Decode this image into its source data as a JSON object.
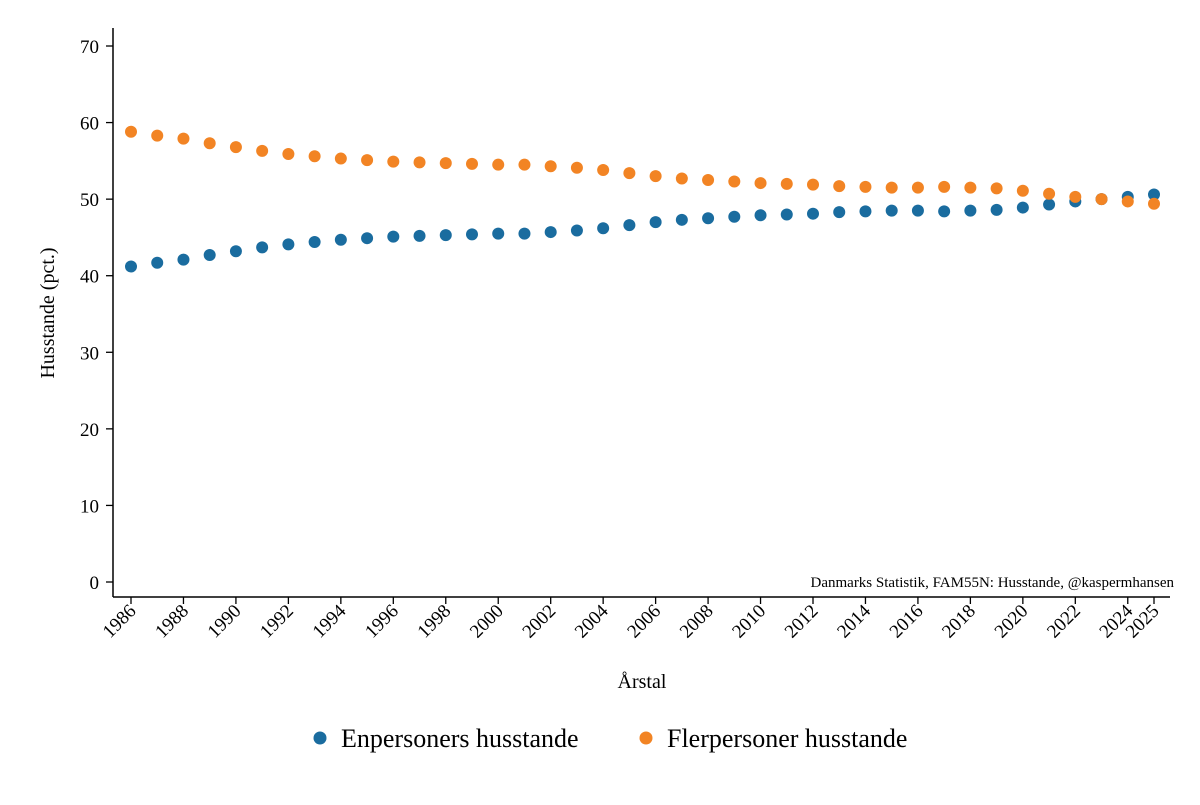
{
  "chart_data": {
    "type": "scatter",
    "title": "",
    "xlabel": "Årstal",
    "ylabel": "Husstande (pct.)",
    "xlim": [
      1986,
      2025
    ],
    "ylim": [
      0,
      70
    ],
    "y_ticks": [
      0,
      10,
      20,
      30,
      40,
      50,
      60,
      70
    ],
    "x_ticks": [
      1986,
      1988,
      1990,
      1992,
      1994,
      1996,
      1998,
      2000,
      2002,
      2004,
      2006,
      2008,
      2010,
      2012,
      2014,
      2016,
      2018,
      2020,
      2022,
      2024,
      2025
    ],
    "grid": false,
    "legend_position": "bottom",
    "source_note": "Danmarks Statistik, FAM55N: Husstande, @kaspermhansen",
    "x": [
      1986,
      1987,
      1988,
      1989,
      1990,
      1991,
      1992,
      1993,
      1994,
      1995,
      1996,
      1997,
      1998,
      1999,
      2000,
      2001,
      2002,
      2003,
      2004,
      2005,
      2006,
      2007,
      2008,
      2009,
      2010,
      2011,
      2012,
      2013,
      2014,
      2015,
      2016,
      2017,
      2018,
      2019,
      2020,
      2021,
      2022,
      2023,
      2024,
      2025
    ],
    "series": [
      {
        "name": "Enpersoners husstande",
        "color": "#1a6c9f",
        "values": [
          41.2,
          41.7,
          42.1,
          42.7,
          43.2,
          43.7,
          44.1,
          44.4,
          44.7,
          44.9,
          45.1,
          45.2,
          45.3,
          45.4,
          45.5,
          45.5,
          45.7,
          45.9,
          46.2,
          46.6,
          47.0,
          47.3,
          47.5,
          47.7,
          47.9,
          48.0,
          48.1,
          48.3,
          48.4,
          48.5,
          48.5,
          48.4,
          48.5,
          48.6,
          48.9,
          49.3,
          49.7,
          50.0,
          50.3,
          50.6
        ]
      },
      {
        "name": "Flerpersoner husstande",
        "color": "#f28424",
        "values": [
          58.8,
          58.3,
          57.9,
          57.3,
          56.8,
          56.3,
          55.9,
          55.6,
          55.3,
          55.1,
          54.9,
          54.8,
          54.7,
          54.6,
          54.5,
          54.5,
          54.3,
          54.1,
          53.8,
          53.4,
          53.0,
          52.7,
          52.5,
          52.3,
          52.1,
          52.0,
          51.9,
          51.7,
          51.6,
          51.5,
          51.5,
          51.6,
          51.5,
          51.4,
          51.1,
          50.7,
          50.3,
          50.0,
          49.7,
          49.4
        ]
      }
    ]
  }
}
